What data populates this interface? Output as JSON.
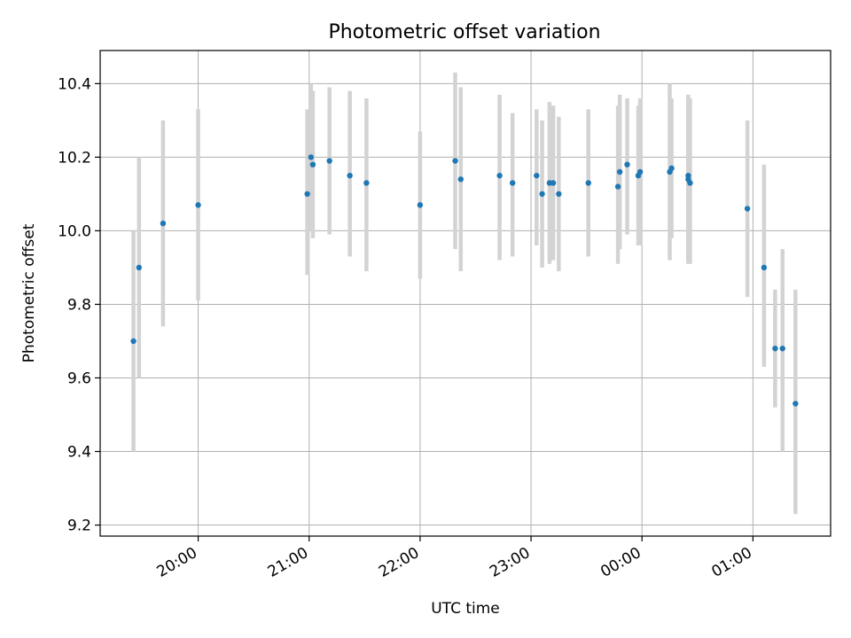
{
  "chart_data": {
    "type": "scatter",
    "title": "Photometric offset variation",
    "xlabel": "UTC time",
    "ylabel": "Photometric offset",
    "grid": true,
    "x_unit": "UTC time (HH:MM)",
    "xlim": [
      "19:07",
      "01:42"
    ],
    "ylim": [
      9.17,
      10.49
    ],
    "yticks": [
      9.2,
      9.4,
      9.6,
      9.8,
      10.0,
      10.2,
      10.4
    ],
    "ytick_labels": [
      "9.2",
      "9.4",
      "9.6",
      "9.8",
      "10.0",
      "10.2",
      "10.4"
    ],
    "xticks": [
      "20:00",
      "21:00",
      "22:00",
      "23:00",
      "00:00",
      "01:00"
    ],
    "xtick_labels": [
      "20:00",
      "21:00",
      "22:00",
      "23:00",
      "00:00",
      "01:00"
    ],
    "colors": {
      "point": "#1f77b4",
      "errorbar": "#d3d3d3",
      "grid": "#b0b0b0"
    },
    "points": [
      {
        "x": "19:25",
        "y": 9.7,
        "yerr_low": 9.4,
        "yerr_high": 10.0
      },
      {
        "x": "19:28",
        "y": 9.9,
        "yerr_low": 9.6,
        "yerr_high": 10.2
      },
      {
        "x": "19:41",
        "y": 10.02,
        "yerr_low": 9.74,
        "yerr_high": 10.3
      },
      {
        "x": "20:00",
        "y": 10.07,
        "yerr_low": 9.81,
        "yerr_high": 10.33
      },
      {
        "x": "20:59",
        "y": 10.1,
        "yerr_low": 9.88,
        "yerr_high": 10.33
      },
      {
        "x": "21:01",
        "y": 10.2,
        "yerr_low": 10.0,
        "yerr_high": 10.4
      },
      {
        "x": "21:02",
        "y": 10.18,
        "yerr_low": 9.98,
        "yerr_high": 10.38
      },
      {
        "x": "21:11",
        "y": 10.19,
        "yerr_low": 9.99,
        "yerr_high": 10.39
      },
      {
        "x": "21:22",
        "y": 10.15,
        "yerr_low": 9.93,
        "yerr_high": 10.38
      },
      {
        "x": "21:31",
        "y": 10.13,
        "yerr_low": 9.89,
        "yerr_high": 10.36
      },
      {
        "x": "22:00",
        "y": 10.07,
        "yerr_low": 9.87,
        "yerr_high": 10.27
      },
      {
        "x": "22:19",
        "y": 10.19,
        "yerr_low": 9.95,
        "yerr_high": 10.43
      },
      {
        "x": "22:22",
        "y": 10.14,
        "yerr_low": 9.89,
        "yerr_high": 10.39
      },
      {
        "x": "22:43",
        "y": 10.15,
        "yerr_low": 9.92,
        "yerr_high": 10.37
      },
      {
        "x": "22:50",
        "y": 10.13,
        "yerr_low": 9.93,
        "yerr_high": 10.32
      },
      {
        "x": "23:03",
        "y": 10.15,
        "yerr_low": 9.96,
        "yerr_high": 10.33
      },
      {
        "x": "23:06",
        "y": 10.1,
        "yerr_low": 9.9,
        "yerr_high": 10.3
      },
      {
        "x": "23:10",
        "y": 10.13,
        "yerr_low": 9.91,
        "yerr_high": 10.35
      },
      {
        "x": "23:12",
        "y": 10.13,
        "yerr_low": 9.92,
        "yerr_high": 10.34
      },
      {
        "x": "23:15",
        "y": 10.1,
        "yerr_low": 9.89,
        "yerr_high": 10.31
      },
      {
        "x": "23:31",
        "y": 10.13,
        "yerr_low": 9.93,
        "yerr_high": 10.33
      },
      {
        "x": "23:47",
        "y": 10.12,
        "yerr_low": 9.91,
        "yerr_high": 10.34
      },
      {
        "x": "23:48",
        "y": 10.16,
        "yerr_low": 9.95,
        "yerr_high": 10.37
      },
      {
        "x": "23:52",
        "y": 10.18,
        "yerr_low": 9.99,
        "yerr_high": 10.36
      },
      {
        "x": "23:58",
        "y": 10.15,
        "yerr_low": 9.96,
        "yerr_high": 10.34
      },
      {
        "x": "23:59",
        "y": 10.16,
        "yerr_low": 9.96,
        "yerr_high": 10.36
      },
      {
        "x": "00:15",
        "y": 10.16,
        "yerr_low": 9.92,
        "yerr_high": 10.4
      },
      {
        "x": "00:16",
        "y": 10.17,
        "yerr_low": 9.98,
        "yerr_high": 10.36
      },
      {
        "x": "00:25",
        "y": 10.14,
        "yerr_low": 9.91,
        "yerr_high": 10.37
      },
      {
        "x": "00:25",
        "y": 10.15,
        "yerr_low": 9.92,
        "yerr_high": 10.36
      },
      {
        "x": "00:26",
        "y": 10.13,
        "yerr_low": 9.91,
        "yerr_high": 10.36
      },
      {
        "x": "00:57",
        "y": 10.06,
        "yerr_low": 9.82,
        "yerr_high": 10.3
      },
      {
        "x": "01:06",
        "y": 9.9,
        "yerr_low": 9.63,
        "yerr_high": 10.18
      },
      {
        "x": "01:12",
        "y": 9.68,
        "yerr_low": 9.52,
        "yerr_high": 9.84
      },
      {
        "x": "01:16",
        "y": 9.68,
        "yerr_low": 9.4,
        "yerr_high": 9.95
      },
      {
        "x": "01:23",
        "y": 9.53,
        "yerr_low": 9.23,
        "yerr_high": 9.84
      }
    ]
  }
}
